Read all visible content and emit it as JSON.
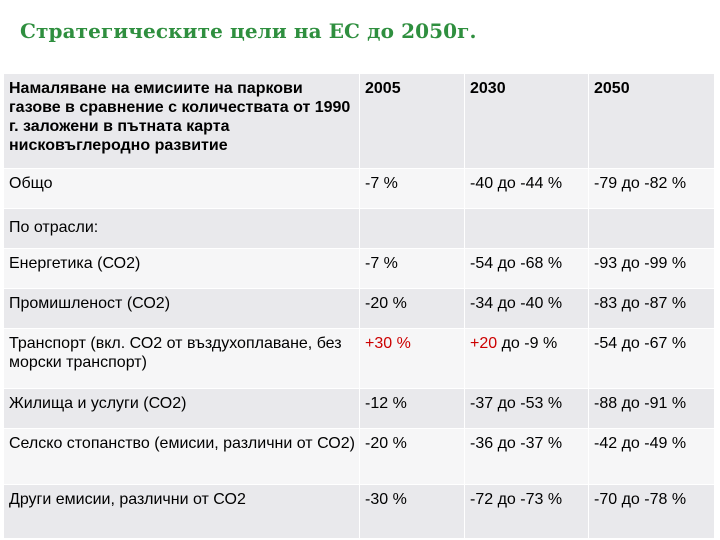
{
  "slide": {
    "title": "Стратегическите цели на ЕС до 2050г."
  },
  "table": {
    "header": {
      "description": "Намаляване на емисиите на паркови газове в сравнение с количествата от 1990 г. заложени в пътната карта нисковъглеродно развитие",
      "years": [
        "2005",
        "2030",
        "2050"
      ]
    },
    "rows": [
      {
        "label": "Общо",
        "v2005": "-7 %",
        "v2030": "-40 до -44 %",
        "v2050": "-79 до -82 %"
      },
      {
        "label": "По отрасли:",
        "v2005": "",
        "v2030": "",
        "v2050": ""
      },
      {
        "label": "Енергетика (СО2)",
        "v2005": "-7 %",
        "v2030": "-54 до -68 %",
        "v2050": "-93 до -99 %"
      },
      {
        "label": "Промишленост (СО2)",
        "v2005": "-20 %",
        "v2030": "-34 до -40 %",
        "v2050": "-83 до -87 %"
      },
      {
        "label": "Транспорт (вкл. СО2 от въздухоплаване, без морски транспорт)",
        "v2005": "+30 %",
        "v2030_pos": "+20",
        "v2030_rest": " до -9 %",
        "v2050": "-54 до -67 %"
      },
      {
        "label": "Жилища и услуги (СО2)",
        "v2005": "-12 %",
        "v2030": "-37 до -53 %",
        "v2050": "-88 до -91 %"
      },
      {
        "label": "Селско стопанство (емисии, различни от СО2)",
        "v2005": "-20 %",
        "v2030": "-36 до -37 %",
        "v2050": "-42 до -49 %"
      },
      {
        "label": "Други емисии, различни от СО2",
        "v2005": "-30 %",
        "v2030": "-72 до -73 %",
        "v2050": "-70 до -78 %"
      }
    ]
  },
  "colors": {
    "title": "#2f8f3f",
    "positive_value": "#cc0000",
    "row_dark": "#e9e9ec",
    "row_light": "#f6f6f7"
  }
}
